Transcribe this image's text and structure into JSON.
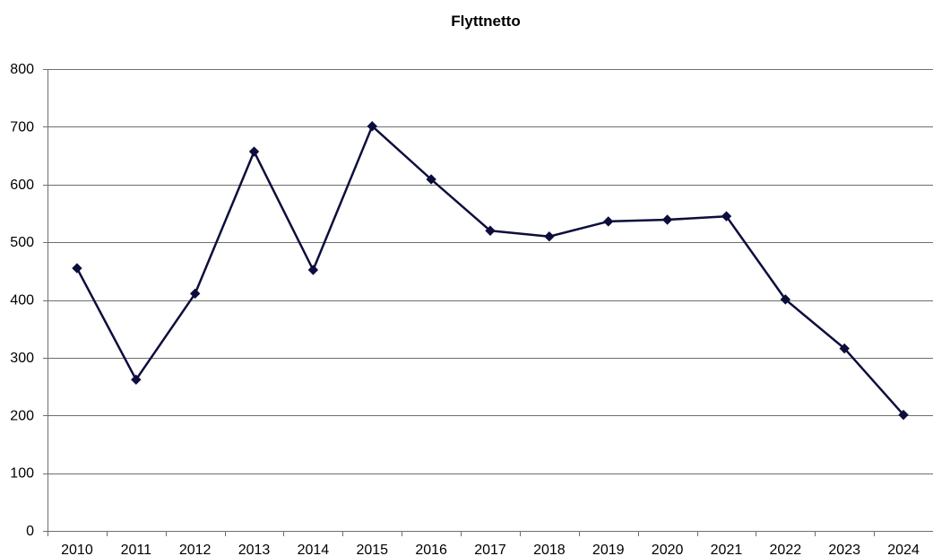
{
  "chart_data": {
    "type": "line",
    "title": "Flyttnetto",
    "xlabel": "",
    "ylabel": "",
    "categories": [
      "2010",
      "2011",
      "2012",
      "2013",
      "2014",
      "2015",
      "2016",
      "2017",
      "2018",
      "2019",
      "2020",
      "2021",
      "2022",
      "2023",
      "2024"
    ],
    "series": [
      {
        "values": [
          455,
          262,
          411,
          657,
          452,
          701,
          609,
          520,
          510,
          536,
          539,
          545,
          401,
          316,
          201
        ],
        "color": "#0d0d3d",
        "marker": "diamond"
      }
    ],
    "ylim": [
      0,
      800
    ],
    "yticks": [
      0,
      100,
      200,
      300,
      400,
      500,
      600,
      700,
      800
    ],
    "grid": true,
    "legend": "none"
  }
}
